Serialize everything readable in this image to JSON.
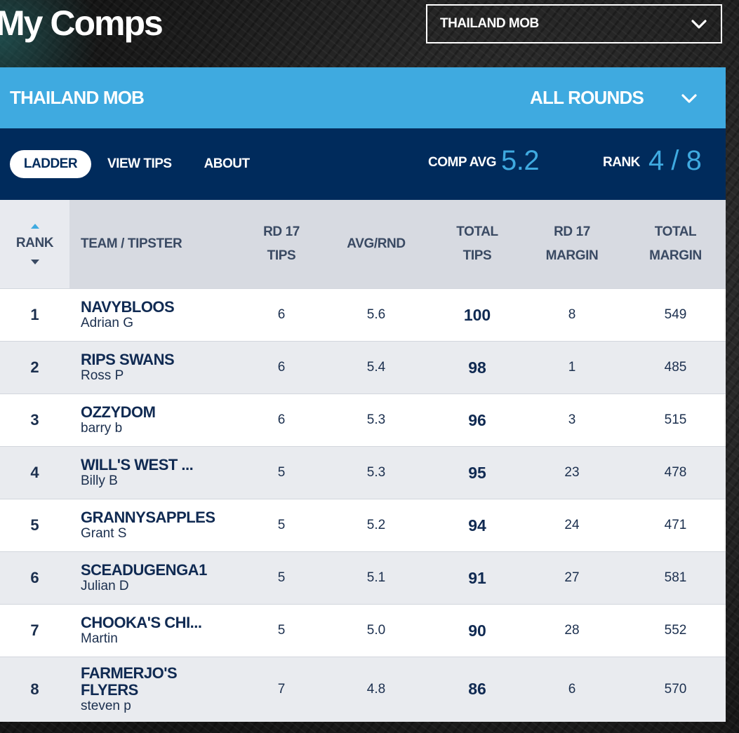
{
  "page": {
    "title": "My Comps"
  },
  "comp_selector": {
    "value": "THAILAND MOB"
  },
  "comp_bar": {
    "name": "THAILAND MOB",
    "round_filter": "ALL ROUNDS"
  },
  "nav": {
    "tabs": [
      {
        "label": "LADDER",
        "active": true
      },
      {
        "label": "VIEW TIPS",
        "active": false
      },
      {
        "label": "ABOUT",
        "active": false
      }
    ],
    "comp_avg_label": "COMP AVG",
    "comp_avg_value": "5.2",
    "rank_label": "RANK",
    "rank_value": "4 / 8"
  },
  "table": {
    "headers": {
      "rank": "RANK",
      "team": "TEAM / TIPSTER",
      "rd_tips_1": "RD 17",
      "rd_tips_2": "TIPS",
      "avg": "AVG/RND",
      "total_tips_1": "TOTAL",
      "total_tips_2": "TIPS",
      "rd_margin_1": "RD 17",
      "rd_margin_2": "MARGIN",
      "total_margin_1": "TOTAL",
      "total_margin_2": "MARGIN"
    },
    "rows": [
      {
        "rank": "1",
        "team": "NAVYBLOOS",
        "tipster": "Adrian G",
        "rd_tips": "6",
        "avg": "5.6",
        "total_tips": "100",
        "rd_margin": "8",
        "total_margin": "549"
      },
      {
        "rank": "2",
        "team": "RIPS SWANS",
        "tipster": "Ross P",
        "rd_tips": "6",
        "avg": "5.4",
        "total_tips": "98",
        "rd_margin": "1",
        "total_margin": "485"
      },
      {
        "rank": "3",
        "team": "OZZYDOM",
        "tipster": "barry b",
        "rd_tips": "6",
        "avg": "5.3",
        "total_tips": "96",
        "rd_margin": "3",
        "total_margin": "515"
      },
      {
        "rank": "4",
        "team": "WILL'S WEST ...",
        "tipster": "Billy B",
        "rd_tips": "5",
        "avg": "5.3",
        "total_tips": "95",
        "rd_margin": "23",
        "total_margin": "478"
      },
      {
        "rank": "5",
        "team": "GRANNYSAPPLES",
        "tipster": "Grant S",
        "rd_tips": "5",
        "avg": "5.2",
        "total_tips": "94",
        "rd_margin": "24",
        "total_margin": "471"
      },
      {
        "rank": "6",
        "team": "SCEADUGENGA1",
        "tipster": "Julian D",
        "rd_tips": "5",
        "avg": "5.1",
        "total_tips": "91",
        "rd_margin": "27",
        "total_margin": "581"
      },
      {
        "rank": "7",
        "team": "CHOOKA'S CHI...",
        "tipster": "Martin",
        "rd_tips": "5",
        "avg": "5.0",
        "total_tips": "90",
        "rd_margin": "28",
        "total_margin": "552"
      },
      {
        "rank": "8",
        "team": "FARMERJO'S FLYERS",
        "tipster": "steven p",
        "rd_tips": "7",
        "avg": "4.8",
        "total_tips": "86",
        "rd_margin": "6",
        "total_margin": "570"
      }
    ]
  },
  "colors": {
    "accent_blue": "#3faae0",
    "navy": "#002b5c"
  },
  "icons": {
    "selector": "chevron-down-icon",
    "sort": "sort-arrows-icon"
  }
}
